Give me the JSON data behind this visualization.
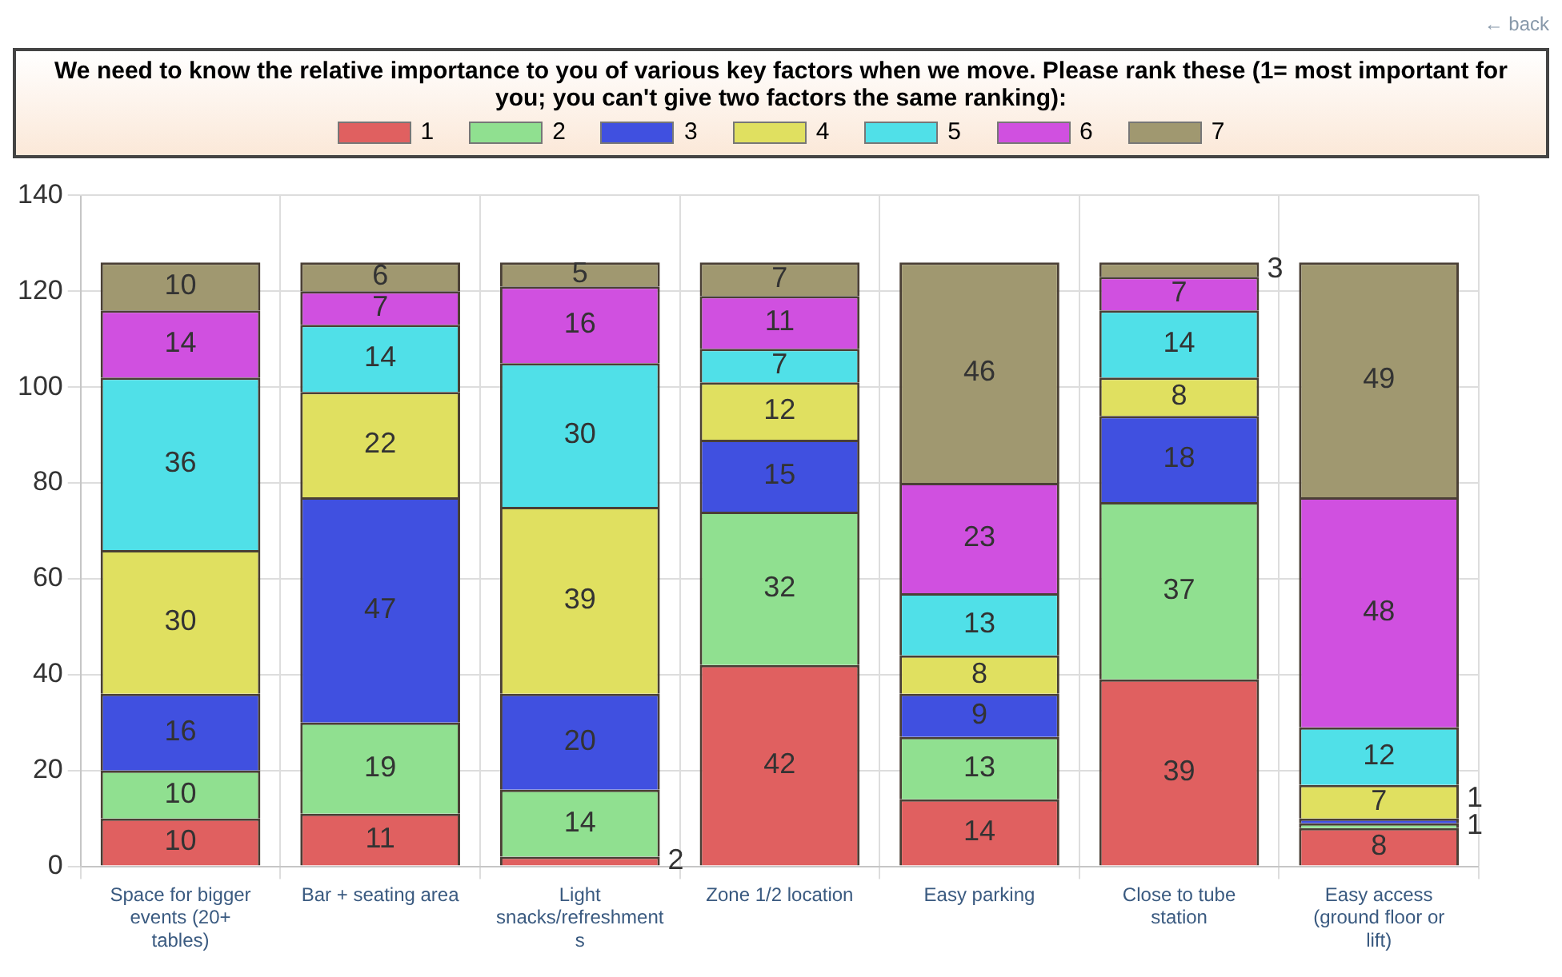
{
  "chart_data": {
    "type": "bar",
    "title": "We need to know the relative importance to you of various key factors when we move.  Please rank these (1= most important for you; you can't give two factors the same ranking):",
    "annotations": [
      "← back"
    ],
    "categories": [
      "Space for bigger events (20+ tables)",
      "Bar + seating area",
      "Light snacks/refreshments",
      "Zone 1/2 location",
      "Easy parking",
      "Close to tube station",
      "Easy access (ground floor or lift)"
    ],
    "series": [
      {
        "name": "1",
        "color": "#e06060",
        "values": [
          10,
          11,
          2,
          42,
          14,
          39,
          8
        ]
      },
      {
        "name": "2",
        "color": "#90e090",
        "values": [
          10,
          19,
          14,
          32,
          13,
          37,
          1
        ]
      },
      {
        "name": "3",
        "color": "#4050e0",
        "values": [
          16,
          47,
          20,
          15,
          9,
          18,
          1
        ]
      },
      {
        "name": "4",
        "color": "#e0e060",
        "values": [
          30,
          22,
          39,
          12,
          8,
          8,
          7
        ]
      },
      {
        "name": "5",
        "color": "#50e0e8",
        "values": [
          36,
          14,
          30,
          7,
          13,
          14,
          12
        ]
      },
      {
        "name": "6",
        "color": "#d050e0",
        "values": [
          14,
          7,
          16,
          11,
          23,
          7,
          48
        ]
      },
      {
        "name": "7",
        "color": "#a09870",
        "values": [
          10,
          6,
          5,
          7,
          46,
          3,
          49
        ]
      }
    ],
    "stacked": true,
    "ylim": [
      0,
      140
    ],
    "yticks": [
      0,
      20,
      40,
      60,
      80,
      100,
      120,
      140
    ],
    "grid": true,
    "legend": "top",
    "data_labels": true
  }
}
